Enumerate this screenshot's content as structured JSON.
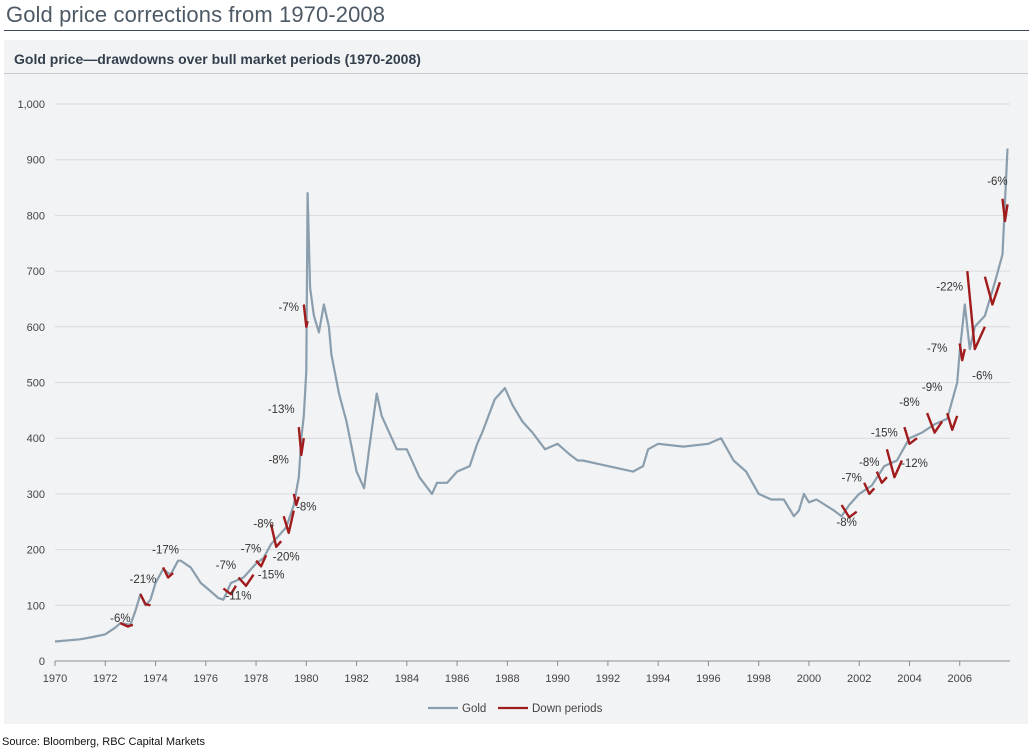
{
  "page_title": "Gold price corrections from 1970-2008",
  "source": "Source: Bloomberg, RBC Capital Markets",
  "colors": {
    "gold_line": "#8a9ead",
    "down_periods": "#a01b1b",
    "grid": "#d8dadd",
    "text": "#444444"
  },
  "chart_data": {
    "type": "line",
    "title": "Gold price—drawdowns over bull market periods (1970-2008)",
    "xlabel": "",
    "ylabel": "",
    "xlim": [
      1970,
      2008
    ],
    "ylim": [
      0,
      1000
    ],
    "x_ticks": [
      1970,
      1972,
      1974,
      1976,
      1978,
      1980,
      1982,
      1984,
      1986,
      1988,
      1990,
      1992,
      1994,
      1996,
      1998,
      2000,
      2002,
      2004,
      2006
    ],
    "y_ticks": [
      0,
      100,
      200,
      300,
      400,
      500,
      600,
      700,
      800,
      900,
      1000
    ],
    "y_tick_labels": [
      "0",
      "100",
      "200",
      "300",
      "400",
      "500",
      "600",
      "700",
      "800",
      "900",
      "1,000"
    ],
    "series": [
      {
        "name": "Gold",
        "x": [
          1970,
          1971,
          1971.5,
          1972,
          1972.4,
          1972.6,
          1973,
          1973.2,
          1973.4,
          1973.6,
          1973.8,
          1974,
          1974.3,
          1974.6,
          1974.9,
          1975,
          1975.4,
          1975.8,
          1976.2,
          1976.5,
          1976.7,
          1977,
          1977.5,
          1978,
          1978.3,
          1978.6,
          1978.9,
          1979.2,
          1979.5,
          1979.7,
          1979.8,
          1979.9,
          1980,
          1980.05,
          1980.15,
          1980.3,
          1980.5,
          1980.7,
          1980.9,
          1981,
          1981.3,
          1981.6,
          1982,
          1982.3,
          1982.5,
          1982.8,
          1983,
          1983.3,
          1983.6,
          1984,
          1984.5,
          1985,
          1985.2,
          1985.6,
          1986,
          1986.5,
          1986.8,
          1987,
          1987.5,
          1987.9,
          1988.2,
          1988.6,
          1989,
          1989.5,
          1990,
          1990.5,
          1990.8,
          1991,
          1992,
          1993,
          1993.4,
          1993.6,
          1994,
          1995,
          1996,
          1996.5,
          1997,
          1997.5,
          1998,
          1998.5,
          1999,
          1999.4,
          1999.6,
          1999.8,
          2000,
          2000.3,
          2001,
          2001.3,
          2001.6,
          2002,
          2002.5,
          2003,
          2003.5,
          2004,
          2004.5,
          2005,
          2005.5,
          2005.9,
          2006,
          2006.2,
          2006.4,
          2006.6,
          2007,
          2007.4,
          2007.7,
          2007.9
        ],
        "y": [
          35,
          39,
          43,
          48,
          60,
          68,
          65,
          90,
          120,
          100,
          110,
          140,
          165,
          155,
          180,
          180,
          168,
          140,
          125,
          113,
          110,
          140,
          150,
          175,
          185,
          210,
          225,
          240,
          280,
          330,
          400,
          440,
          520,
          840,
          670,
          620,
          590,
          640,
          600,
          550,
          480,
          430,
          340,
          310,
          380,
          480,
          440,
          410,
          380,
          380,
          330,
          300,
          320,
          320,
          340,
          350,
          390,
          410,
          470,
          490,
          460,
          430,
          410,
          380,
          390,
          370,
          360,
          360,
          350,
          340,
          350,
          380,
          390,
          385,
          390,
          400,
          360,
          340,
          300,
          290,
          290,
          260,
          270,
          300,
          285,
          290,
          270,
          260,
          280,
          300,
          315,
          350,
          360,
          400,
          410,
          425,
          435,
          500,
          555,
          640,
          560,
          600,
          620,
          680,
          730,
          920
        ]
      }
    ],
    "down_periods": [
      {
        "x": [
          1972.6,
          1972.9,
          1973.1
        ],
        "y": [
          68,
          62,
          65
        ]
      },
      {
        "x": [
          1973.4,
          1973.6,
          1973.8
        ],
        "y": [
          120,
          102,
          100
        ]
      },
      {
        "x": [
          1974.3,
          1974.5,
          1974.7
        ],
        "y": [
          168,
          150,
          158
        ]
      },
      {
        "x": [
          1976.7,
          1977.0,
          1977.2
        ],
        "y": [
          130,
          120,
          135
        ]
      },
      {
        "x": [
          1977.3,
          1977.6,
          1977.9
        ],
        "y": [
          150,
          135,
          155
        ]
      },
      {
        "x": [
          1978.0,
          1978.2,
          1978.4
        ],
        "y": [
          180,
          170,
          190
        ]
      },
      {
        "x": [
          1978.6,
          1978.8,
          1979.0
        ],
        "y": [
          245,
          205,
          215
        ]
      },
      {
        "x": [
          1979.1,
          1979.3,
          1979.5
        ],
        "y": [
          260,
          230,
          270
        ]
      },
      {
        "x": [
          1979.5,
          1979.6,
          1979.7
        ],
        "y": [
          300,
          280,
          295
        ]
      },
      {
        "x": [
          1979.7,
          1979.8,
          1979.9
        ],
        "y": [
          420,
          370,
          400
        ]
      },
      {
        "x": [
          1979.9,
          1980.0,
          1980.05
        ],
        "y": [
          640,
          600,
          610
        ]
      },
      {
        "x": [
          2001.3,
          2001.6,
          2001.9
        ],
        "y": [
          280,
          258,
          268
        ]
      },
      {
        "x": [
          2002.2,
          2002.4,
          2002.6
        ],
        "y": [
          320,
          300,
          310
        ]
      },
      {
        "x": [
          2002.7,
          2002.9,
          2003.1
        ],
        "y": [
          340,
          320,
          330
        ]
      },
      {
        "x": [
          2003.1,
          2003.4,
          2003.7
        ],
        "y": [
          380,
          330,
          360
        ]
      },
      {
        "x": [
          2003.8,
          2004.0,
          2004.3
        ],
        "y": [
          420,
          390,
          400
        ]
      },
      {
        "x": [
          2004.7,
          2005.0,
          2005.3
        ],
        "y": [
          445,
          410,
          430
        ]
      },
      {
        "x": [
          2005.5,
          2005.7,
          2005.9
        ],
        "y": [
          445,
          415,
          440
        ]
      },
      {
        "x": [
          2006.0,
          2006.1,
          2006.2
        ],
        "y": [
          570,
          540,
          560
        ]
      },
      {
        "x": [
          2006.3,
          2006.6,
          2007.0
        ],
        "y": [
          700,
          560,
          600
        ]
      },
      {
        "x": [
          2007.0,
          2007.3,
          2007.6
        ],
        "y": [
          690,
          640,
          680
        ]
      },
      {
        "x": [
          2007.7,
          2007.8,
          2007.9
        ],
        "y": [
          830,
          790,
          820
        ]
      }
    ],
    "annotations": [
      {
        "text": "-6%",
        "x": 1972.6,
        "y": 70
      },
      {
        "text": "-21%",
        "x": 1973.5,
        "y": 140
      },
      {
        "text": "-17%",
        "x": 1974.4,
        "y": 193
      },
      {
        "text": "-7%",
        "x": 1976.8,
        "y": 165
      },
      {
        "text": "-11%",
        "x": 1977.3,
        "y": 110
      },
      {
        "text": "-7%",
        "x": 1977.8,
        "y": 195
      },
      {
        "text": "-15%",
        "x": 1978.6,
        "y": 148
      },
      {
        "text": "-8%",
        "x": 1978.3,
        "y": 240
      },
      {
        "text": "-20%",
        "x": 1979.2,
        "y": 180
      },
      {
        "text": "-8%",
        "x": 1980.0,
        "y": 270
      },
      {
        "text": "-8%",
        "x": 1978.9,
        "y": 355
      },
      {
        "text": "-13%",
        "x": 1979.0,
        "y": 445
      },
      {
        "text": "-7%",
        "x": 1979.3,
        "y": 628
      },
      {
        "text": "-8%",
        "x": 2001.5,
        "y": 242
      },
      {
        "text": "-7%",
        "x": 2001.7,
        "y": 322
      },
      {
        "text": "-8%",
        "x": 2002.4,
        "y": 350
      },
      {
        "text": "-15%",
        "x": 2003.0,
        "y": 403
      },
      {
        "text": "-12%",
        "x": 2004.2,
        "y": 348
      },
      {
        "text": "-8%",
        "x": 2004.0,
        "y": 458
      },
      {
        "text": "-9%",
        "x": 2004.9,
        "y": 485
      },
      {
        "text": "-7%",
        "x": 2005.1,
        "y": 555
      },
      {
        "text": "-6%",
        "x": 2006.9,
        "y": 505
      },
      {
        "text": "-22%",
        "x": 2005.6,
        "y": 665
      },
      {
        "text": "-6%",
        "x": 2007.5,
        "y": 855
      }
    ],
    "legend": {
      "position": "bottom-center",
      "items": [
        "Gold",
        "Down periods"
      ]
    }
  }
}
